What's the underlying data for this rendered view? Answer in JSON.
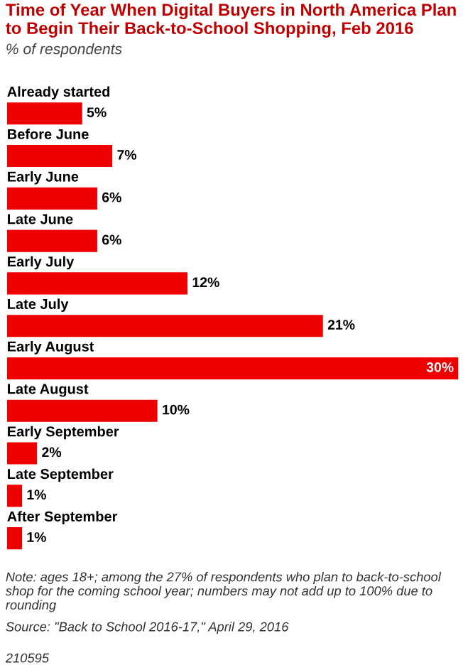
{
  "chart_data": {
    "type": "bar",
    "orientation": "horizontal",
    "title": "Time of Year When Digital Buyers in North America Plan to Begin Their Back-to-School Shopping, Feb 2016",
    "subtitle": "% of respondents",
    "categories": [
      "Already started",
      "Before June",
      "Early June",
      "Late June",
      "Early July",
      "Late July",
      "Early August",
      "Late August",
      "Early September",
      "Late September",
      "After September"
    ],
    "values": [
      5,
      7,
      6,
      6,
      12,
      21,
      30,
      10,
      2,
      1,
      1
    ],
    "value_labels": [
      "5%",
      "7%",
      "6%",
      "6%",
      "12%",
      "21%",
      "30%",
      "10%",
      "2%",
      "1%",
      "1%"
    ],
    "color": "#ee0000",
    "annotations": [
      "Note: ages 18+; among the 27% of respondents who plan to back-to-school shop for the coming school year; numbers may not add up to 100% due to rounding",
      "Source: \"Back to School 2016-17,\" April 29, 2016",
      "210595"
    ]
  }
}
